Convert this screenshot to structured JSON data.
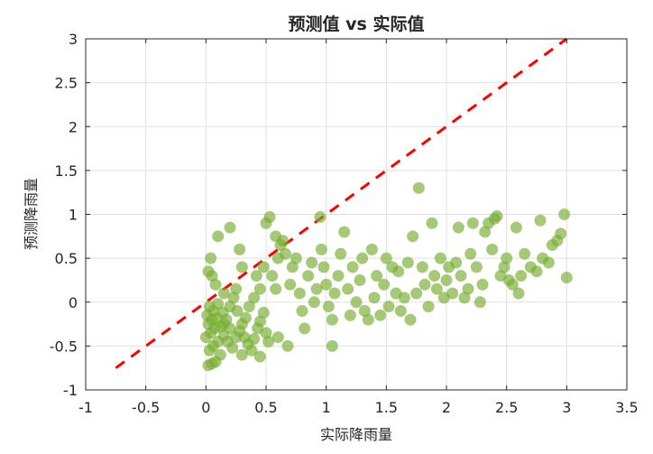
{
  "chart_data": {
    "type": "scatter",
    "title": "预测值 vs 实际值",
    "xlabel": "实际降雨量",
    "ylabel": "预测降雨量",
    "xlim": [
      -1,
      3.5
    ],
    "ylim": [
      -1,
      3
    ],
    "xticks": [
      "-1",
      "-0.5",
      "0",
      "0.5",
      "1",
      "1.5",
      "2",
      "2.5",
      "3",
      "3.5"
    ],
    "yticks": [
      "-1",
      "-0.5",
      "0",
      "0.5",
      "1",
      "1.5",
      "2",
      "2.5",
      "3"
    ],
    "xtick_values": [
      -1,
      -0.5,
      0,
      0.5,
      1,
      1.5,
      2,
      2.5,
      3,
      3.5
    ],
    "ytick_values": [
      -1,
      -0.5,
      0,
      0.5,
      1,
      1.5,
      2,
      2.5,
      3
    ],
    "grid": true,
    "reference_line": {
      "x": [
        -0.75,
        3
      ],
      "y": [
        -0.75,
        3
      ],
      "style": "dashed"
    },
    "colors": {
      "points": "#77ac30",
      "reference_line": "#ff0000",
      "grid": "#e0e0e0",
      "axis": "#262626"
    },
    "points": [
      [
        0.02,
        -0.72
      ],
      [
        0.05,
        -0.7
      ],
      [
        0.08,
        -0.68
      ],
      [
        0.03,
        -0.55
      ],
      [
        0.06,
        -0.5
      ],
      [
        0.1,
        -0.45
      ],
      [
        0.0,
        -0.4
      ],
      [
        0.04,
        -0.35
      ],
      [
        0.07,
        -0.3
      ],
      [
        0.12,
        -0.28
      ],
      [
        0.02,
        -0.25
      ],
      [
        0.05,
        -0.2
      ],
      [
        0.09,
        -0.18
      ],
      [
        0.01,
        -0.15
      ],
      [
        0.06,
        -0.1
      ],
      [
        0.03,
        -0.05
      ],
      [
        0.1,
        -0.02
      ],
      [
        0.14,
        -0.12
      ],
      [
        0.17,
        -0.2
      ],
      [
        0.2,
        -0.3
      ],
      [
        0.15,
        -0.38
      ],
      [
        0.18,
        -0.45
      ],
      [
        0.22,
        -0.52
      ],
      [
        0.25,
        -0.4
      ],
      [
        0.28,
        -0.33
      ],
      [
        0.3,
        -0.25
      ],
      [
        0.33,
        -0.18
      ],
      [
        0.26,
        -0.1
      ],
      [
        0.2,
        -0.05
      ],
      [
        0.23,
        0.05
      ],
      [
        0.35,
        -0.48
      ],
      [
        0.38,
        -0.55
      ],
      [
        0.4,
        -0.42
      ],
      [
        0.43,
        -0.3
      ],
      [
        0.45,
        -0.22
      ],
      [
        0.48,
        -0.12
      ],
      [
        0.5,
        -0.35
      ],
      [
        0.52,
        -0.45
      ],
      [
        0.36,
        -0.05
      ],
      [
        0.4,
        0.05
      ],
      [
        0.02,
        0.35
      ],
      [
        0.05,
        0.3
      ],
      [
        0.08,
        0.2
      ],
      [
        0.04,
        0.5
      ],
      [
        0.1,
        0.75
      ],
      [
        0.2,
        0.85
      ],
      [
        0.28,
        0.6
      ],
      [
        0.3,
        0.4
      ],
      [
        0.25,
        0.15
      ],
      [
        0.15,
        0.1
      ],
      [
        0.42,
        0.3
      ],
      [
        0.45,
        0.15
      ],
      [
        0.48,
        0.4
      ],
      [
        0.5,
        0.9
      ],
      [
        0.53,
        0.97
      ],
      [
        0.55,
        0.3
      ],
      [
        0.58,
        0.15
      ],
      [
        0.6,
        0.5
      ],
      [
        0.58,
        0.75
      ],
      [
        0.62,
        0.65
      ],
      [
        0.64,
        0.7
      ],
      [
        0.66,
        0.55
      ],
      [
        0.7,
        0.2
      ],
      [
        0.72,
        0.4
      ],
      [
        0.75,
        0.5
      ],
      [
        0.78,
        0.1
      ],
      [
        0.8,
        -0.1
      ],
      [
        0.82,
        -0.3
      ],
      [
        0.85,
        0.3
      ],
      [
        0.88,
        0.45
      ],
      [
        0.9,
        0.0
      ],
      [
        0.92,
        0.15
      ],
      [
        0.95,
        0.97
      ],
      [
        0.96,
        0.6
      ],
      [
        0.98,
        0.4
      ],
      [
        1.0,
        0.2
      ],
      [
        1.02,
        -0.05
      ],
      [
        1.05,
        -0.2
      ],
      [
        1.07,
        0.1
      ],
      [
        1.05,
        -0.5
      ],
      [
        1.1,
        0.3
      ],
      [
        1.12,
        0.55
      ],
      [
        1.15,
        0.8
      ],
      [
        1.18,
        0.15
      ],
      [
        1.2,
        -0.15
      ],
      [
        1.22,
        0.4
      ],
      [
        1.25,
        0.0
      ],
      [
        1.28,
        0.25
      ],
      [
        1.3,
        0.5
      ],
      [
        1.32,
        -0.1
      ],
      [
        1.35,
        -0.2
      ],
      [
        1.38,
        0.6
      ],
      [
        1.4,
        0.05
      ],
      [
        1.42,
        0.3
      ],
      [
        1.45,
        -0.15
      ],
      [
        1.48,
        0.2
      ],
      [
        1.5,
        0.5
      ],
      [
        1.52,
        -0.05
      ],
      [
        1.55,
        0.4
      ],
      [
        1.58,
        0.1
      ],
      [
        1.6,
        0.35
      ],
      [
        1.62,
        -0.1
      ],
      [
        1.65,
        0.05
      ],
      [
        1.68,
        0.45
      ],
      [
        1.7,
        -0.2
      ],
      [
        1.72,
        0.75
      ],
      [
        1.75,
        0.1
      ],
      [
        1.77,
        1.3
      ],
      [
        1.8,
        0.4
      ],
      [
        1.82,
        0.2
      ],
      [
        1.85,
        -0.05
      ],
      [
        1.88,
        0.9
      ],
      [
        1.9,
        0.3
      ],
      [
        1.92,
        0.15
      ],
      [
        1.95,
        0.5
      ],
      [
        1.98,
        0.05
      ],
      [
        2.0,
        0.25
      ],
      [
        2.02,
        0.4
      ],
      [
        2.05,
        0.1
      ],
      [
        2.08,
        0.45
      ],
      [
        2.1,
        0.85
      ],
      [
        2.12,
        0.3
      ],
      [
        2.15,
        0.05
      ],
      [
        2.18,
        0.15
      ],
      [
        2.2,
        0.55
      ],
      [
        2.22,
        0.9
      ],
      [
        2.25,
        0.4
      ],
      [
        2.28,
        0.0
      ],
      [
        2.3,
        0.2
      ],
      [
        2.32,
        0.8
      ],
      [
        2.35,
        0.9
      ],
      [
        2.38,
        0.6
      ],
      [
        2.4,
        0.95
      ],
      [
        2.42,
        0.98
      ],
      [
        2.45,
        0.3
      ],
      [
        2.48,
        0.4
      ],
      [
        2.5,
        0.5
      ],
      [
        2.52,
        0.25
      ],
      [
        2.55,
        0.2
      ],
      [
        2.58,
        0.85
      ],
      [
        2.6,
        0.1
      ],
      [
        2.62,
        0.3
      ],
      [
        2.65,
        0.55
      ],
      [
        2.7,
        0.4
      ],
      [
        2.75,
        0.35
      ],
      [
        2.78,
        0.93
      ],
      [
        2.8,
        0.5
      ],
      [
        2.85,
        0.45
      ],
      [
        2.88,
        0.65
      ],
      [
        2.92,
        0.7
      ],
      [
        2.95,
        0.78
      ],
      [
        2.98,
        1.0
      ],
      [
        3.0,
        0.28
      ],
      [
        0.12,
        -0.6
      ],
      [
        0.3,
        -0.6
      ],
      [
        0.45,
        -0.62
      ],
      [
        0.6,
        -0.4
      ],
      [
        0.68,
        -0.5
      ],
      [
        0.15,
        -0.25
      ],
      [
        0.32,
        -0.4
      ]
    ]
  }
}
